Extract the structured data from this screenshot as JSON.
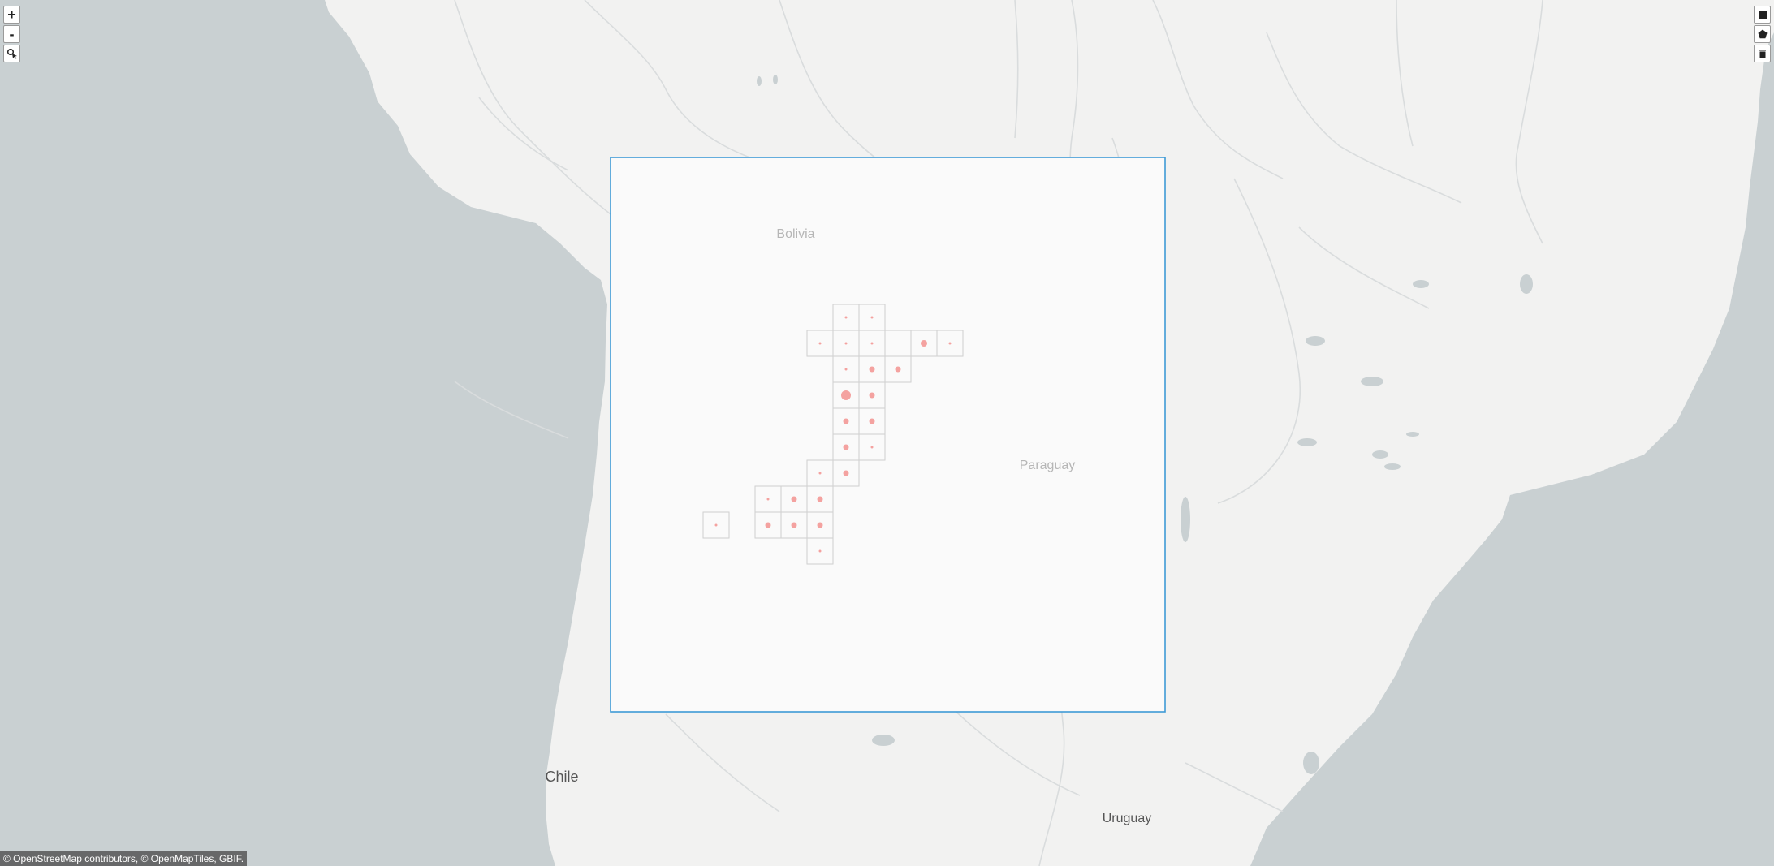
{
  "map": {
    "country_labels": {
      "bolivia": "Bolivia",
      "paraguay": "Paraguay",
      "chile": "Chile",
      "uruguay": "Uruguay"
    },
    "colors": {
      "ocean": "#c9d0d2",
      "land": "#f2f2f1",
      "selection_border": "#3e9ad6",
      "selection_fill": "#fafafa",
      "grid_cell_border": "#cfcfcf",
      "occurrence_dot": "#f4a2a0",
      "rivers": "#d9dcdd",
      "lakes": "#c9d0d2"
    },
    "selection_box_visible": true
  },
  "controls": {
    "zoom_in_label": "+",
    "zoom_out_label": "-",
    "locate_icon": "magnify-cursor-icon",
    "draw_rectangle_icon": "square-icon",
    "draw_polygon_icon": "pentagon-icon",
    "delete_icon": "trash-icon"
  },
  "attribution": "© OpenStreetMap contributors, © OpenMapTiles, GBIF."
}
